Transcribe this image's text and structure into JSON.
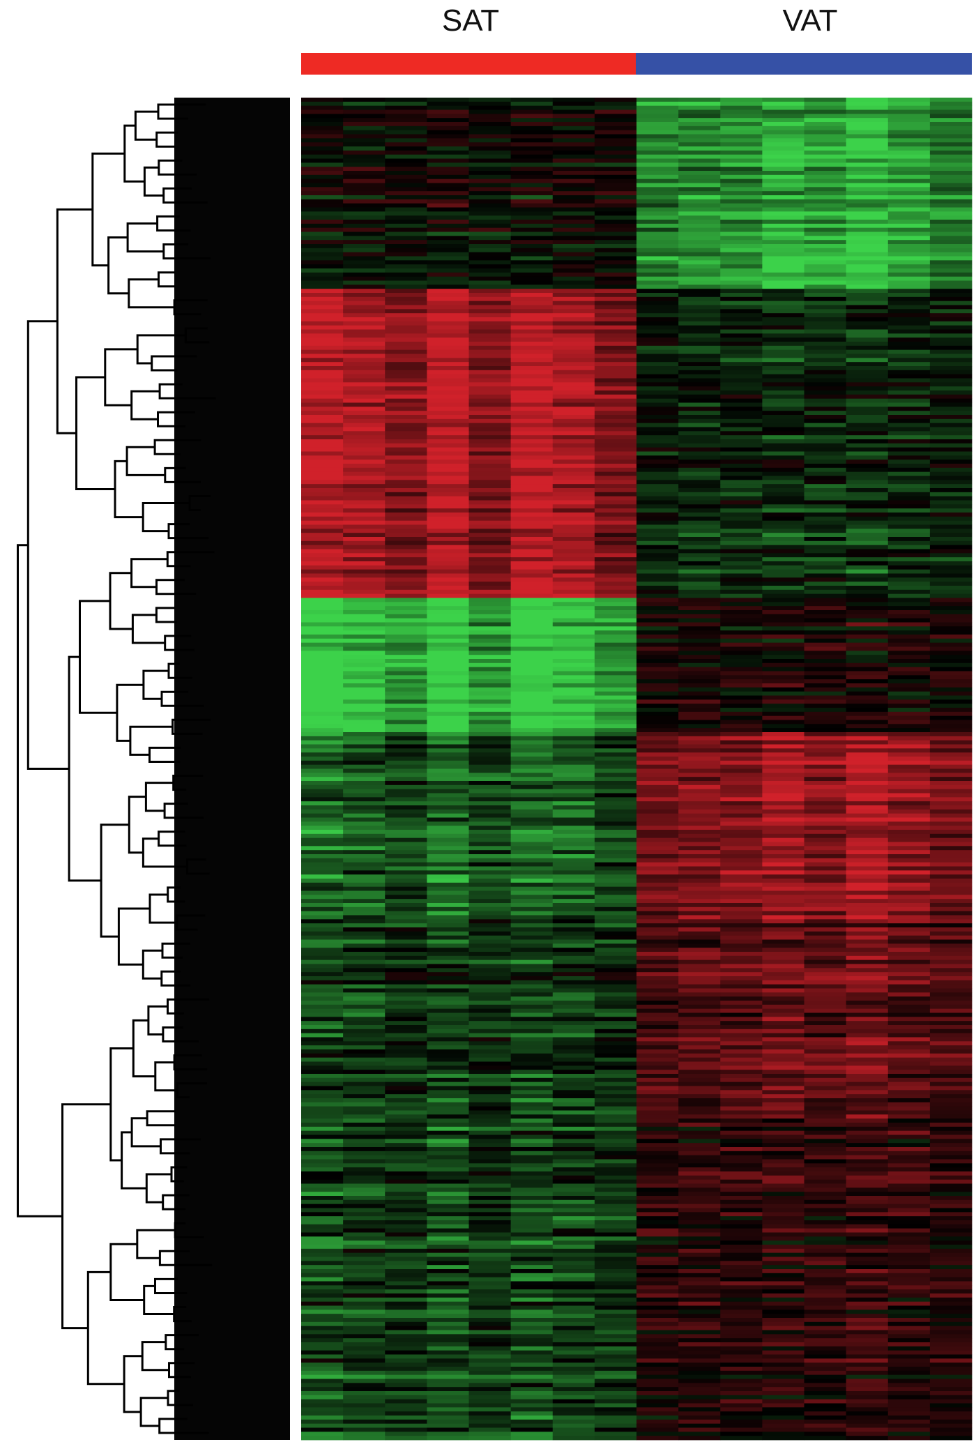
{
  "chart_data": {
    "type": "heatmap",
    "title": "",
    "xlabel": "",
    "ylabel": "",
    "groups": [
      {
        "label": "SAT",
        "color": "#ee2a24",
        "columns": 8
      },
      {
        "label": "VAT",
        "color": "#3651a6",
        "columns": 8
      }
    ],
    "columns_total": 16,
    "rows_approx": 330,
    "color_scale": {
      "low": "#3cd24a",
      "mid": "#000000",
      "high": "#d0212a"
    },
    "row_dendrogram": "left",
    "row_clusters": [
      {
        "rows_fraction": [
          0.0,
          0.14
        ],
        "SAT": 0.0,
        "VAT": -0.75
      },
      {
        "rows_fraction": [
          0.14,
          0.37
        ],
        "SAT": 0.75,
        "VAT": -0.2
      },
      {
        "rows_fraction": [
          0.37,
          0.47
        ],
        "SAT": -0.9,
        "VAT": 0.1
      },
      {
        "rows_fraction": [
          0.47,
          0.61
        ],
        "SAT": -0.4,
        "VAT": 0.7
      },
      {
        "rows_fraction": [
          0.61,
          0.76
        ],
        "SAT": -0.25,
        "VAT": 0.45
      },
      {
        "rows_fraction": [
          0.76,
          1.0
        ],
        "SAT": -0.3,
        "VAT": 0.2
      }
    ]
  }
}
